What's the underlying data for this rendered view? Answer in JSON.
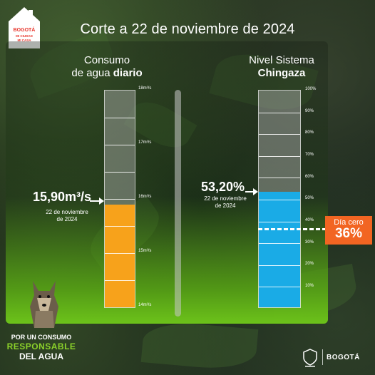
{
  "title": "Corte a 22 de noviembre de 2024",
  "logo": {
    "name": "bogota-mi-ciudad-mi-casa-logo",
    "text": "BOGOTÁ MI CIUDAD MI CASA"
  },
  "consumo": {
    "heading_line1": "Consumo",
    "heading_line2_normal": "de agua ",
    "heading_line2_bold": "diario",
    "value": "15,90m³/s",
    "date_line1": "22 de noviembre",
    "date_line2": "de 2024",
    "ticks": [
      "18m³/s",
      "17m³/s",
      "16m³/s",
      "15m³/s",
      "14m³/s"
    ],
    "range": [
      14,
      18
    ],
    "level": 15.9,
    "fill_color": "#f7a21b"
  },
  "chingaza": {
    "heading_line1": "Nivel Sistema",
    "heading_line2": "Chingaza",
    "value": "53,20%",
    "date_line1": "22 de noviembre",
    "date_line2": "de 2024",
    "ticks": [
      "100%",
      "90%",
      "80%",
      "70%",
      "60%",
      "50%",
      "40%",
      "30%",
      "20%",
      "10%"
    ],
    "level_percent": 53.2,
    "fill_color": "#1aabe6"
  },
  "dia_cero": {
    "label": "Día cero",
    "value": "36%",
    "percent": 36,
    "color": "#f26522"
  },
  "footer": {
    "line1": "POR UN CONSUMO",
    "line2": "RESPONSABLE",
    "line3": "DEL AGUA",
    "accent_color": "#8bd12a",
    "brand": "BOGOTÁ"
  },
  "colors": {
    "panel_bottom": "#6cc21a"
  }
}
